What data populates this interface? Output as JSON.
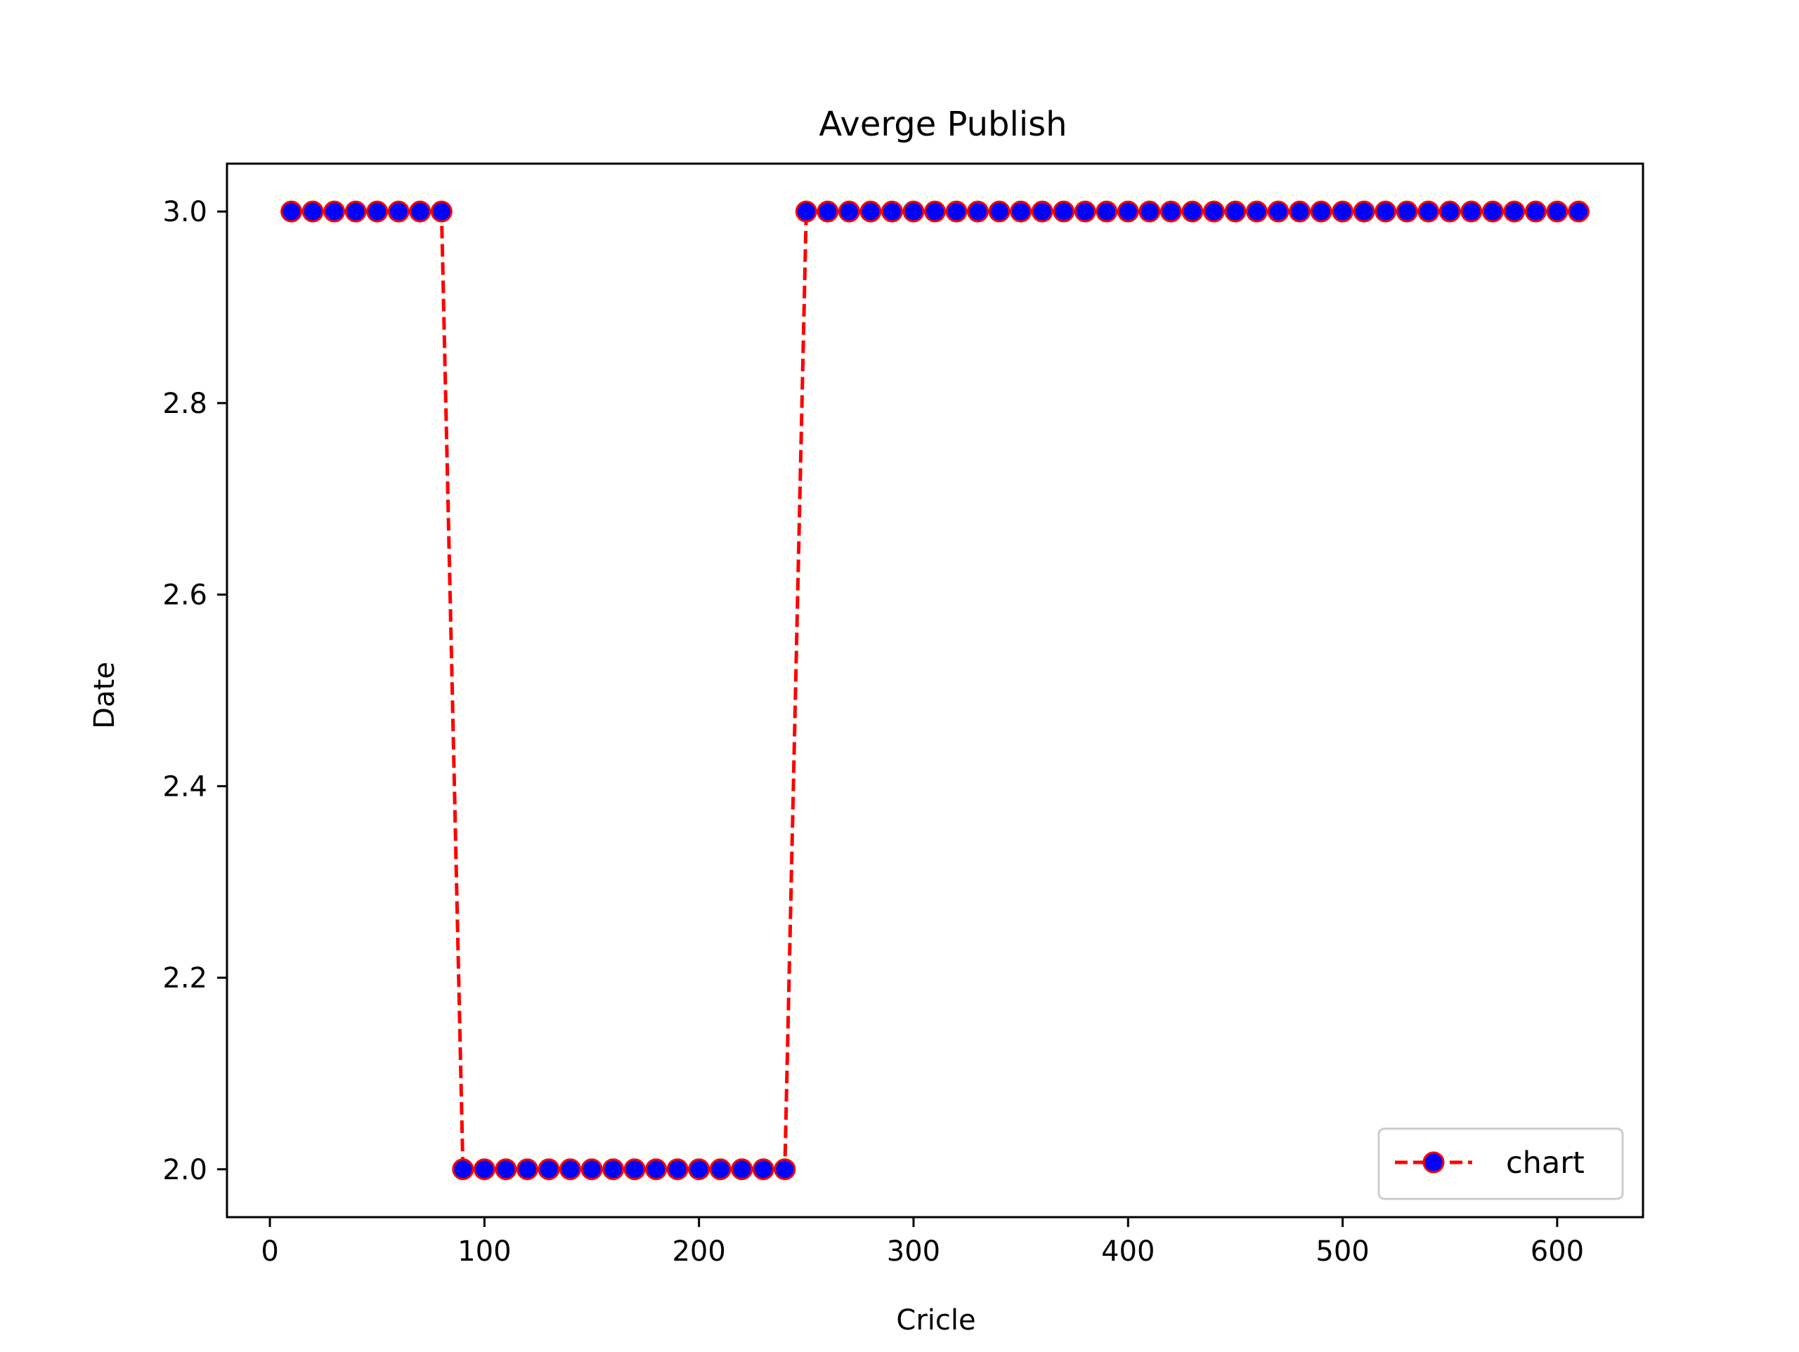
{
  "chart_data": {
    "type": "line",
    "title": "Averge Publish",
    "xlabel": "Cricle",
    "ylabel": "Date",
    "xlim": [
      -20,
      640
    ],
    "ylim": [
      1.95,
      3.05
    ],
    "xticks": [
      0,
      100,
      200,
      300,
      400,
      500,
      600
    ],
    "yticks": [
      2.0,
      2.2,
      2.4,
      2.6,
      2.8,
      3.0
    ],
    "grid": false,
    "legend_position": "lower-right",
    "series": [
      {
        "name": "chart",
        "line_color": "#ff0000",
        "line_style": "dashed",
        "marker": "circle",
        "marker_face_color": "#0000ff",
        "marker_edge_color": "#ff0000",
        "x": [
          10,
          20,
          30,
          40,
          50,
          60,
          70,
          80,
          90,
          100,
          110,
          120,
          130,
          140,
          150,
          160,
          170,
          180,
          190,
          200,
          210,
          220,
          230,
          240,
          250,
          260,
          270,
          280,
          290,
          300,
          310,
          320,
          330,
          340,
          350,
          360,
          370,
          380,
          390,
          400,
          410,
          420,
          430,
          440,
          450,
          460,
          470,
          480,
          490,
          500,
          510,
          520,
          530,
          540,
          550,
          560,
          570,
          580,
          590,
          600,
          610
        ],
        "y": [
          3,
          3,
          3,
          3,
          3,
          3,
          3,
          3,
          2,
          2,
          2,
          2,
          2,
          2,
          2,
          2,
          2,
          2,
          2,
          2,
          2,
          2,
          2,
          2,
          3,
          3,
          3,
          3,
          3,
          3,
          3,
          3,
          3,
          3,
          3,
          3,
          3,
          3,
          3,
          3,
          3,
          3,
          3,
          3,
          3,
          3,
          3,
          3,
          3,
          3,
          3,
          3,
          3,
          3,
          3,
          3,
          3,
          3,
          3,
          3,
          3
        ]
      }
    ]
  }
}
